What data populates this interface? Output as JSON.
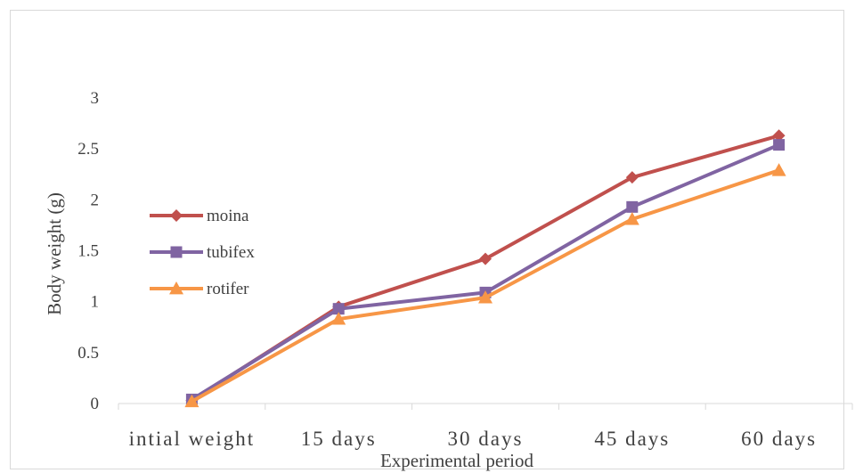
{
  "chart_data": {
    "type": "line",
    "title": "",
    "xlabel": "Experimental period",
    "ylabel": "Body weight (g)",
    "categories": [
      "intial weight",
      "15 days",
      "30 days",
      "45  days",
      "60 days"
    ],
    "ylim": [
      0,
      3
    ],
    "yticks": [
      "0",
      "0.5",
      "1",
      "1.5",
      "2",
      "2.5",
      "3"
    ],
    "grid": false,
    "legend_position": "left",
    "series": [
      {
        "name": "moina",
        "values": [
          0.03,
          0.95,
          1.42,
          2.22,
          2.63
        ],
        "color": "#C0504D",
        "marker": "diamond"
      },
      {
        "name": "tubifex",
        "values": [
          0.04,
          0.93,
          1.09,
          1.93,
          2.54
        ],
        "color": "#8064A2",
        "marker": "square"
      },
      {
        "name": "rotifer",
        "values": [
          0.02,
          0.83,
          1.04,
          1.81,
          2.29
        ],
        "color": "#F79646",
        "marker": "triangle"
      }
    ]
  }
}
